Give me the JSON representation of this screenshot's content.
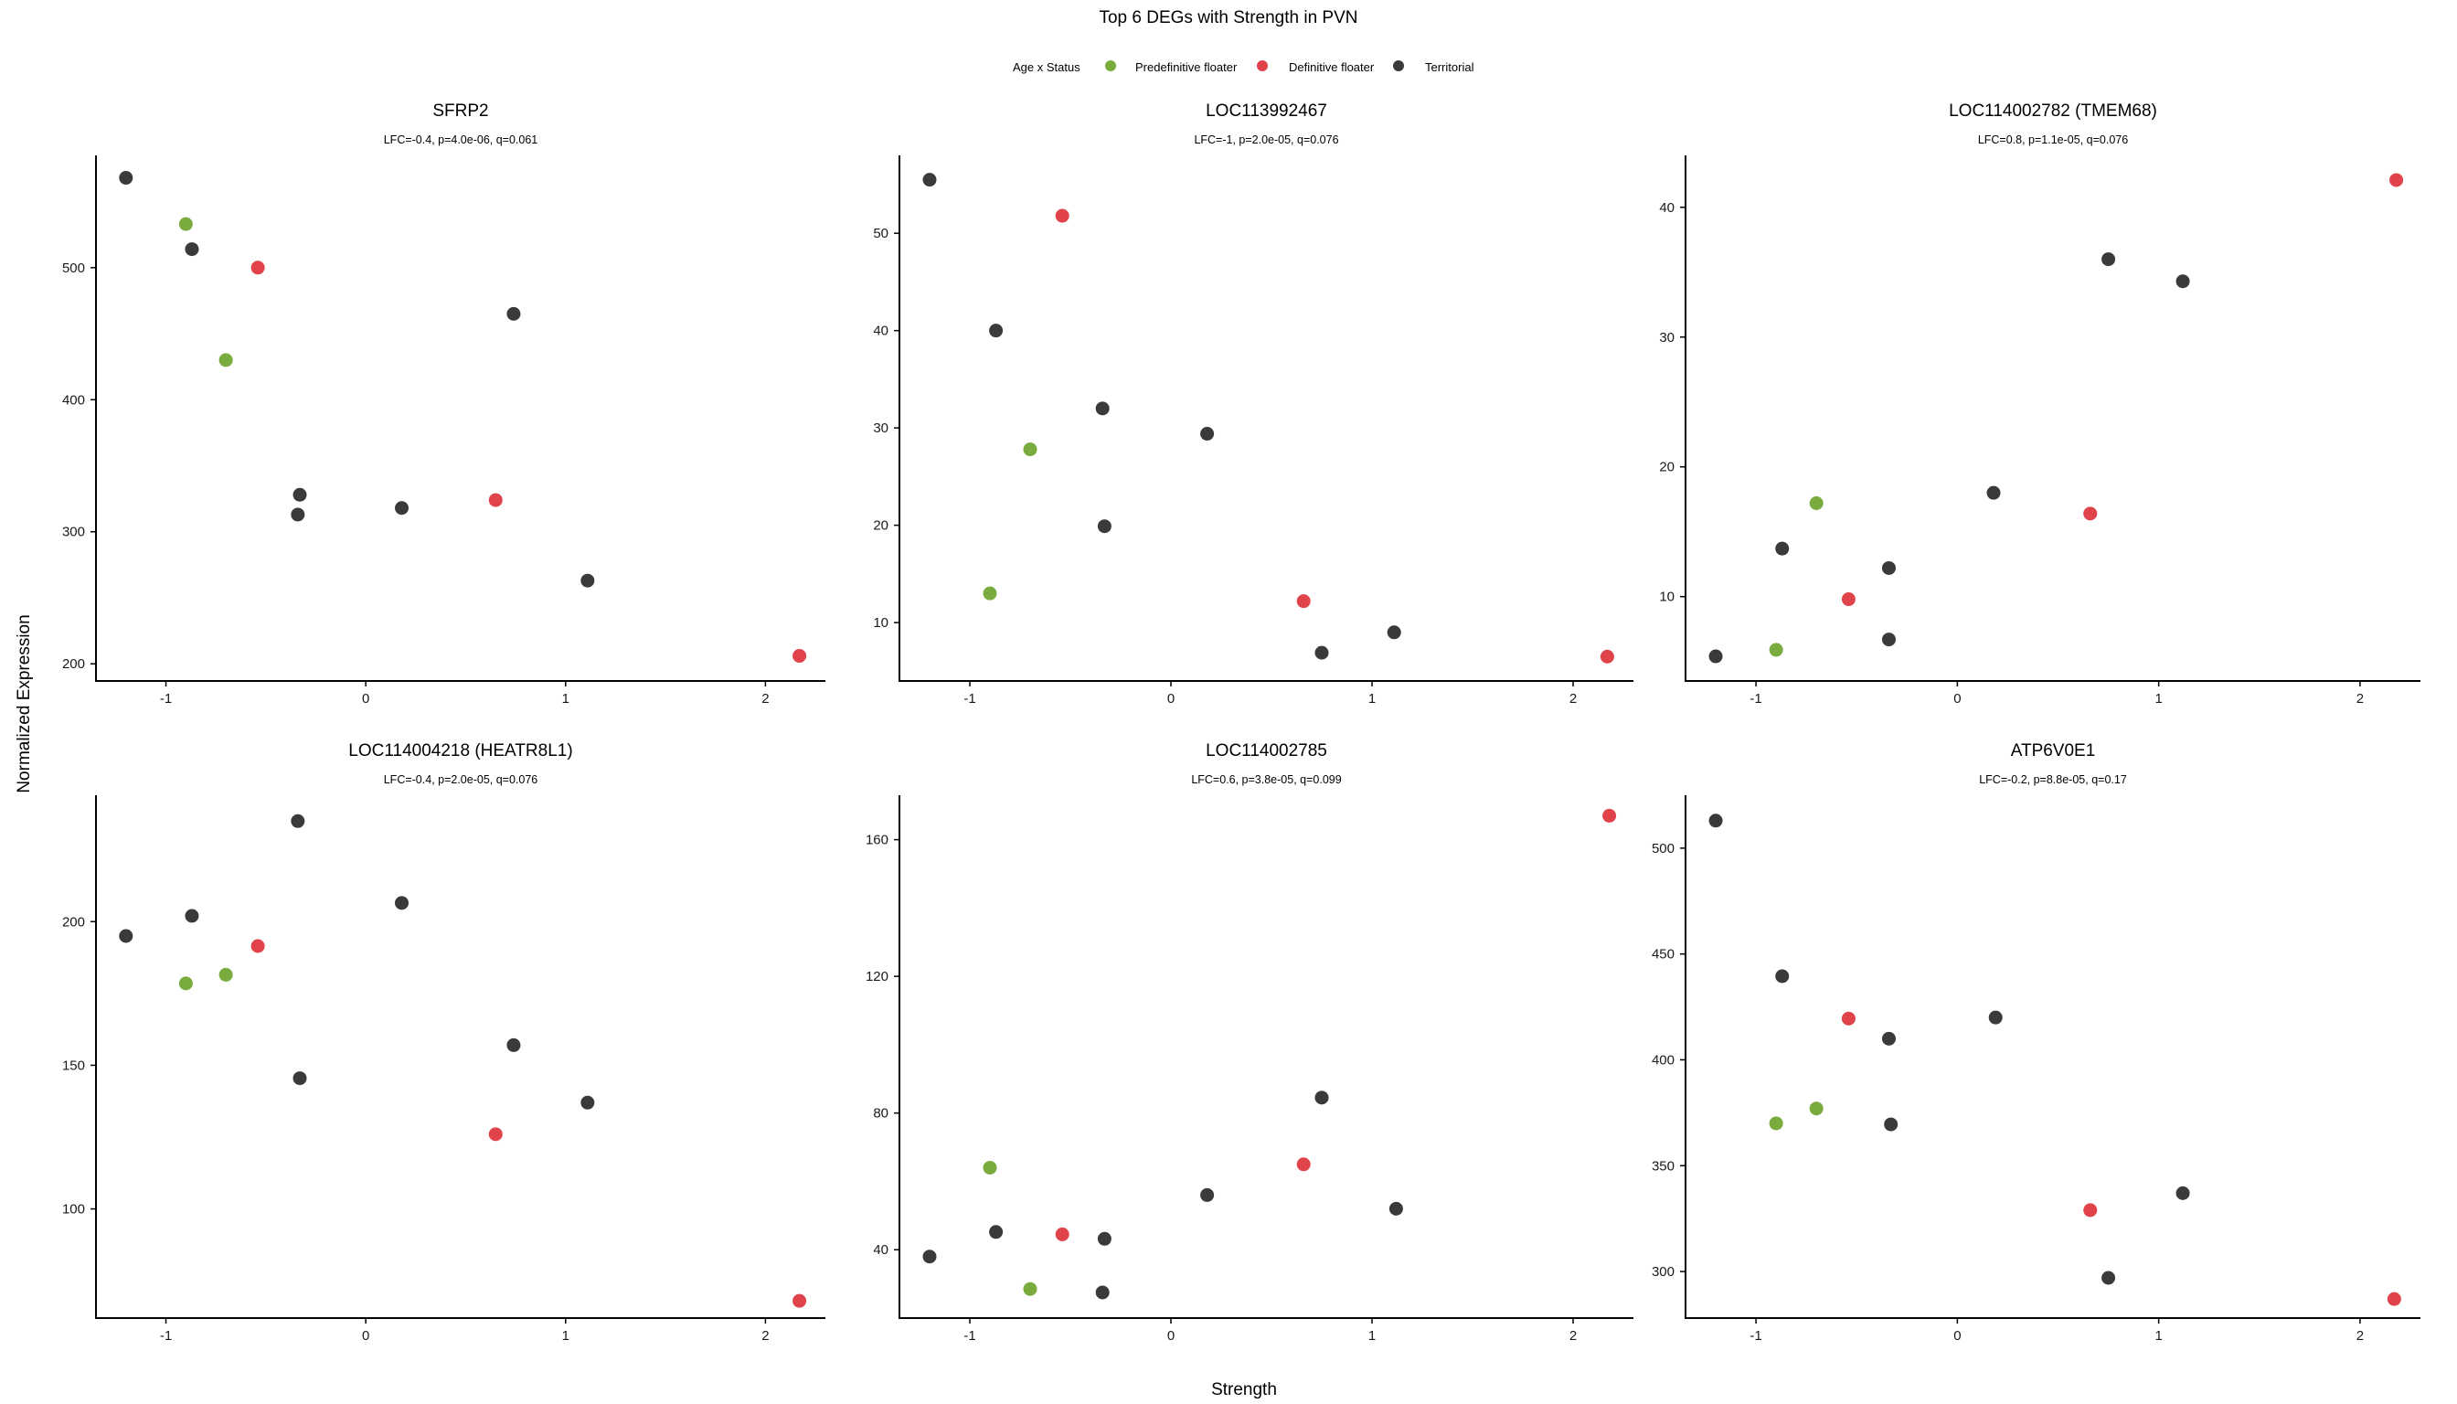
{
  "figure": {
    "title": "Top 6 DEGs with Strength in PVN",
    "xlabel": "Strength",
    "ylabel": "Normalized Expression"
  },
  "legend": {
    "title": "Age x Status",
    "placement": "top",
    "items": [
      {
        "key": "predef",
        "label": "Predefinitive floater",
        "color": "#7aab3e"
      },
      {
        "key": "def",
        "label": "Definitive floater",
        "color": "#e0434a"
      },
      {
        "key": "terr",
        "label": "Territorial",
        "color": "#3a3a3a"
      }
    ]
  },
  "chart_data": [
    {
      "type": "scatter",
      "title": "SFRP2",
      "subtitle": "LFC=-0.4, p=4.0e-06, q=0.061",
      "xlim": [
        -1.35,
        2.3
      ],
      "ylim": [
        187,
        585
      ],
      "xticks": [
        -1,
        0,
        1,
        2
      ],
      "yticks": [
        200,
        300,
        400,
        500
      ],
      "points": [
        {
          "x": -1.2,
          "y": 568,
          "group": "terr"
        },
        {
          "x": -0.9,
          "y": 533,
          "group": "predef"
        },
        {
          "x": -0.87,
          "y": 514,
          "group": "terr"
        },
        {
          "x": -0.54,
          "y": 500,
          "group": "def"
        },
        {
          "x": -0.7,
          "y": 430,
          "group": "predef"
        },
        {
          "x": 0.74,
          "y": 465,
          "group": "terr"
        },
        {
          "x": -0.33,
          "y": 328,
          "group": "terr"
        },
        {
          "x": -0.34,
          "y": 313,
          "group": "terr"
        },
        {
          "x": 0.18,
          "y": 318,
          "group": "terr"
        },
        {
          "x": 0.65,
          "y": 324,
          "group": "def"
        },
        {
          "x": 1.11,
          "y": 263,
          "group": "terr"
        },
        {
          "x": 2.17,
          "y": 206,
          "group": "def"
        }
      ]
    },
    {
      "type": "scatter",
      "title": "LOC113992467",
      "subtitle": "LFC=-1, p=2.0e-05, q=0.076",
      "xlim": [
        -1.35,
        2.3
      ],
      "ylim": [
        4,
        58
      ],
      "xticks": [
        -1,
        0,
        1,
        2
      ],
      "yticks": [
        10,
        20,
        30,
        40,
        50
      ],
      "points": [
        {
          "x": -1.2,
          "y": 55.5,
          "group": "terr"
        },
        {
          "x": -0.54,
          "y": 51.8,
          "group": "def"
        },
        {
          "x": -0.87,
          "y": 40,
          "group": "terr"
        },
        {
          "x": -0.7,
          "y": 27.8,
          "group": "predef"
        },
        {
          "x": -0.34,
          "y": 32,
          "group": "terr"
        },
        {
          "x": 0.18,
          "y": 29.4,
          "group": "terr"
        },
        {
          "x": -0.33,
          "y": 19.9,
          "group": "terr"
        },
        {
          "x": -0.9,
          "y": 13,
          "group": "predef"
        },
        {
          "x": 0.66,
          "y": 12.2,
          "group": "def"
        },
        {
          "x": 1.11,
          "y": 9,
          "group": "terr"
        },
        {
          "x": 0.75,
          "y": 6.9,
          "group": "terr"
        },
        {
          "x": 2.17,
          "y": 6.5,
          "group": "def"
        }
      ]
    },
    {
      "type": "scatter",
      "title": "LOC114002782 (TMEM68)",
      "subtitle": "LFC=0.8, p=1.1e-05, q=0.076",
      "xlim": [
        -1.35,
        2.3
      ],
      "ylim": [
        3.5,
        44
      ],
      "xticks": [
        -1,
        0,
        1,
        2
      ],
      "yticks": [
        10,
        20,
        30,
        40
      ],
      "points": [
        {
          "x": 2.18,
          "y": 42.1,
          "group": "def"
        },
        {
          "x": 0.75,
          "y": 36,
          "group": "terr"
        },
        {
          "x": 1.12,
          "y": 34.3,
          "group": "terr"
        },
        {
          "x": 0.18,
          "y": 18,
          "group": "terr"
        },
        {
          "x": -0.7,
          "y": 17.2,
          "group": "predef"
        },
        {
          "x": 0.66,
          "y": 16.4,
          "group": "def"
        },
        {
          "x": -0.87,
          "y": 13.7,
          "group": "terr"
        },
        {
          "x": -0.34,
          "y": 12.2,
          "group": "terr"
        },
        {
          "x": -0.54,
          "y": 9.8,
          "group": "def"
        },
        {
          "x": -0.34,
          "y": 6.7,
          "group": "terr"
        },
        {
          "x": -0.9,
          "y": 5.9,
          "group": "predef"
        },
        {
          "x": -1.2,
          "y": 5.4,
          "group": "terr"
        }
      ]
    },
    {
      "type": "scatter",
      "title": "LOC114004218 (HEATR8L1)",
      "subtitle": "LFC=-0.4, p=2.0e-05, q=0.076",
      "xlim": [
        -1.35,
        2.3
      ],
      "ylim": [
        62,
        244
      ],
      "xticks": [
        -1,
        0,
        1,
        2
      ],
      "yticks": [
        100,
        150,
        200
      ],
      "points": [
        {
          "x": -0.34,
          "y": 235,
          "group": "terr"
        },
        {
          "x": 0.18,
          "y": 206.5,
          "group": "terr"
        },
        {
          "x": -0.87,
          "y": 202,
          "group": "terr"
        },
        {
          "x": -1.2,
          "y": 195,
          "group": "terr"
        },
        {
          "x": -0.54,
          "y": 191.5,
          "group": "def"
        },
        {
          "x": -0.7,
          "y": 181.5,
          "group": "predef"
        },
        {
          "x": -0.9,
          "y": 178.5,
          "group": "predef"
        },
        {
          "x": 0.74,
          "y": 157,
          "group": "terr"
        },
        {
          "x": -0.33,
          "y": 145.5,
          "group": "terr"
        },
        {
          "x": 1.11,
          "y": 137,
          "group": "terr"
        },
        {
          "x": 0.65,
          "y": 126,
          "group": "def"
        },
        {
          "x": 2.17,
          "y": 68,
          "group": "def"
        }
      ]
    },
    {
      "type": "scatter",
      "title": "LOC114002785",
      "subtitle": "LFC=0.6, p=3.8e-05, q=0.099",
      "xlim": [
        -1.35,
        2.3
      ],
      "ylim": [
        20,
        173
      ],
      "xticks": [
        -1,
        0,
        1,
        2
      ],
      "yticks": [
        40,
        80,
        120,
        160
      ],
      "points": [
        {
          "x": 2.18,
          "y": 167,
          "group": "def"
        },
        {
          "x": 0.75,
          "y": 84.5,
          "group": "terr"
        },
        {
          "x": 0.66,
          "y": 65,
          "group": "def"
        },
        {
          "x": -0.9,
          "y": 64,
          "group": "predef"
        },
        {
          "x": 0.18,
          "y": 56,
          "group": "terr"
        },
        {
          "x": 1.12,
          "y": 52,
          "group": "terr"
        },
        {
          "x": -0.87,
          "y": 45.2,
          "group": "terr"
        },
        {
          "x": -0.54,
          "y": 44.5,
          "group": "def"
        },
        {
          "x": -0.33,
          "y": 43.2,
          "group": "terr"
        },
        {
          "x": -1.2,
          "y": 38,
          "group": "terr"
        },
        {
          "x": -0.7,
          "y": 28.5,
          "group": "predef"
        },
        {
          "x": -0.34,
          "y": 27.5,
          "group": "terr"
        }
      ]
    },
    {
      "type": "scatter",
      "title": "ATP6V0E1",
      "subtitle": "LFC=-0.2, p=8.8e-05, q=0.17",
      "xlim": [
        -1.35,
        2.3
      ],
      "ylim": [
        278,
        525
      ],
      "xticks": [
        -1,
        0,
        1,
        2
      ],
      "yticks": [
        300,
        350,
        400,
        450,
        500
      ],
      "points": [
        {
          "x": -1.2,
          "y": 513,
          "group": "terr"
        },
        {
          "x": -0.87,
          "y": 439.5,
          "group": "terr"
        },
        {
          "x": 0.19,
          "y": 420,
          "group": "terr"
        },
        {
          "x": -0.54,
          "y": 419.5,
          "group": "def"
        },
        {
          "x": -0.34,
          "y": 410,
          "group": "terr"
        },
        {
          "x": -0.7,
          "y": 377,
          "group": "predef"
        },
        {
          "x": -0.9,
          "y": 370,
          "group": "predef"
        },
        {
          "x": -0.33,
          "y": 369.5,
          "group": "terr"
        },
        {
          "x": 1.12,
          "y": 337,
          "group": "terr"
        },
        {
          "x": 0.66,
          "y": 329,
          "group": "def"
        },
        {
          "x": 0.75,
          "y": 297,
          "group": "terr"
        },
        {
          "x": 2.17,
          "y": 287,
          "group": "def"
        }
      ]
    }
  ]
}
